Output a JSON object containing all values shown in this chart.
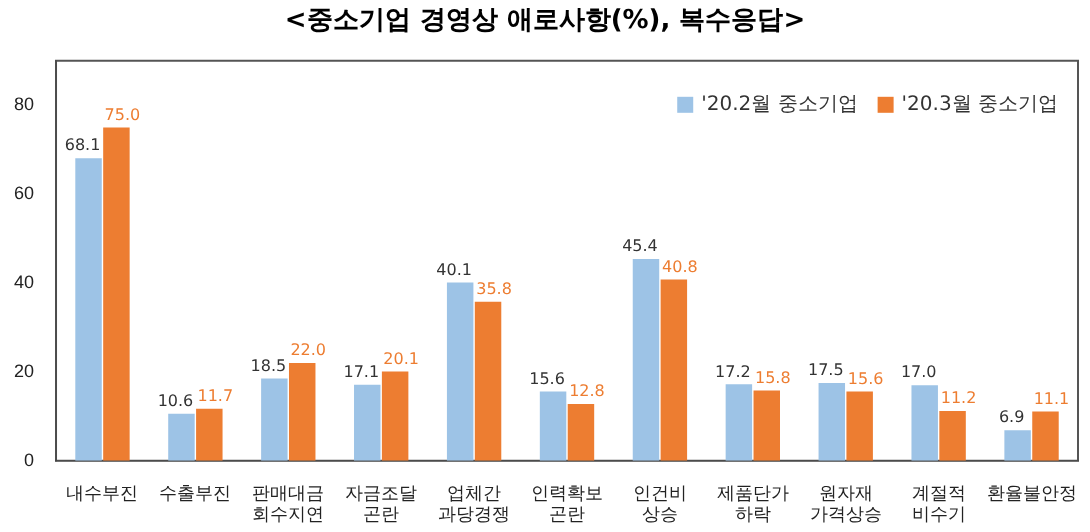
{
  "chart_data": {
    "type": "bar",
    "title": "<중소기업 경영상 애로사항(%), 복수응답>",
    "categories": [
      "내수부진",
      "수출부진",
      "판매대금\n회수지연",
      "자금조달\n곤란",
      "업체간\n과당경쟁",
      "인력확보\n곤란",
      "인건비\n상승",
      "제품단가\n하락",
      "원자재\n가격상승",
      "계절적\n비수기",
      "환율불안정"
    ],
    "series": [
      {
        "name": "'20.2월 중소기업",
        "color": "#9dc3e6",
        "values": [
          68.1,
          10.6,
          18.5,
          17.1,
          40.1,
          15.6,
          45.4,
          17.2,
          17.5,
          17.0,
          6.9
        ],
        "value_labels": [
          "68.1",
          "10.6",
          "18.5",
          "17.1",
          "40.1",
          "15.6",
          "45.4",
          "17.2",
          "17.5",
          "17.0",
          "6.9"
        ]
      },
      {
        "name": "'20.3월 중소기업",
        "color": "#ed7d31",
        "values": [
          75.0,
          11.7,
          22.0,
          20.1,
          35.8,
          12.8,
          40.8,
          15.8,
          15.6,
          11.2,
          11.1
        ],
        "value_labels": [
          "75.0",
          "11.7",
          "22.0",
          "20.1",
          "35.8",
          "12.8",
          "40.8",
          "15.8",
          "15.6",
          "11.2",
          "11.1"
        ]
      }
    ],
    "ylim": [
      0,
      90
    ],
    "yticks": [
      0,
      20,
      40,
      60,
      80
    ],
    "grid": false,
    "legend": "top right"
  }
}
